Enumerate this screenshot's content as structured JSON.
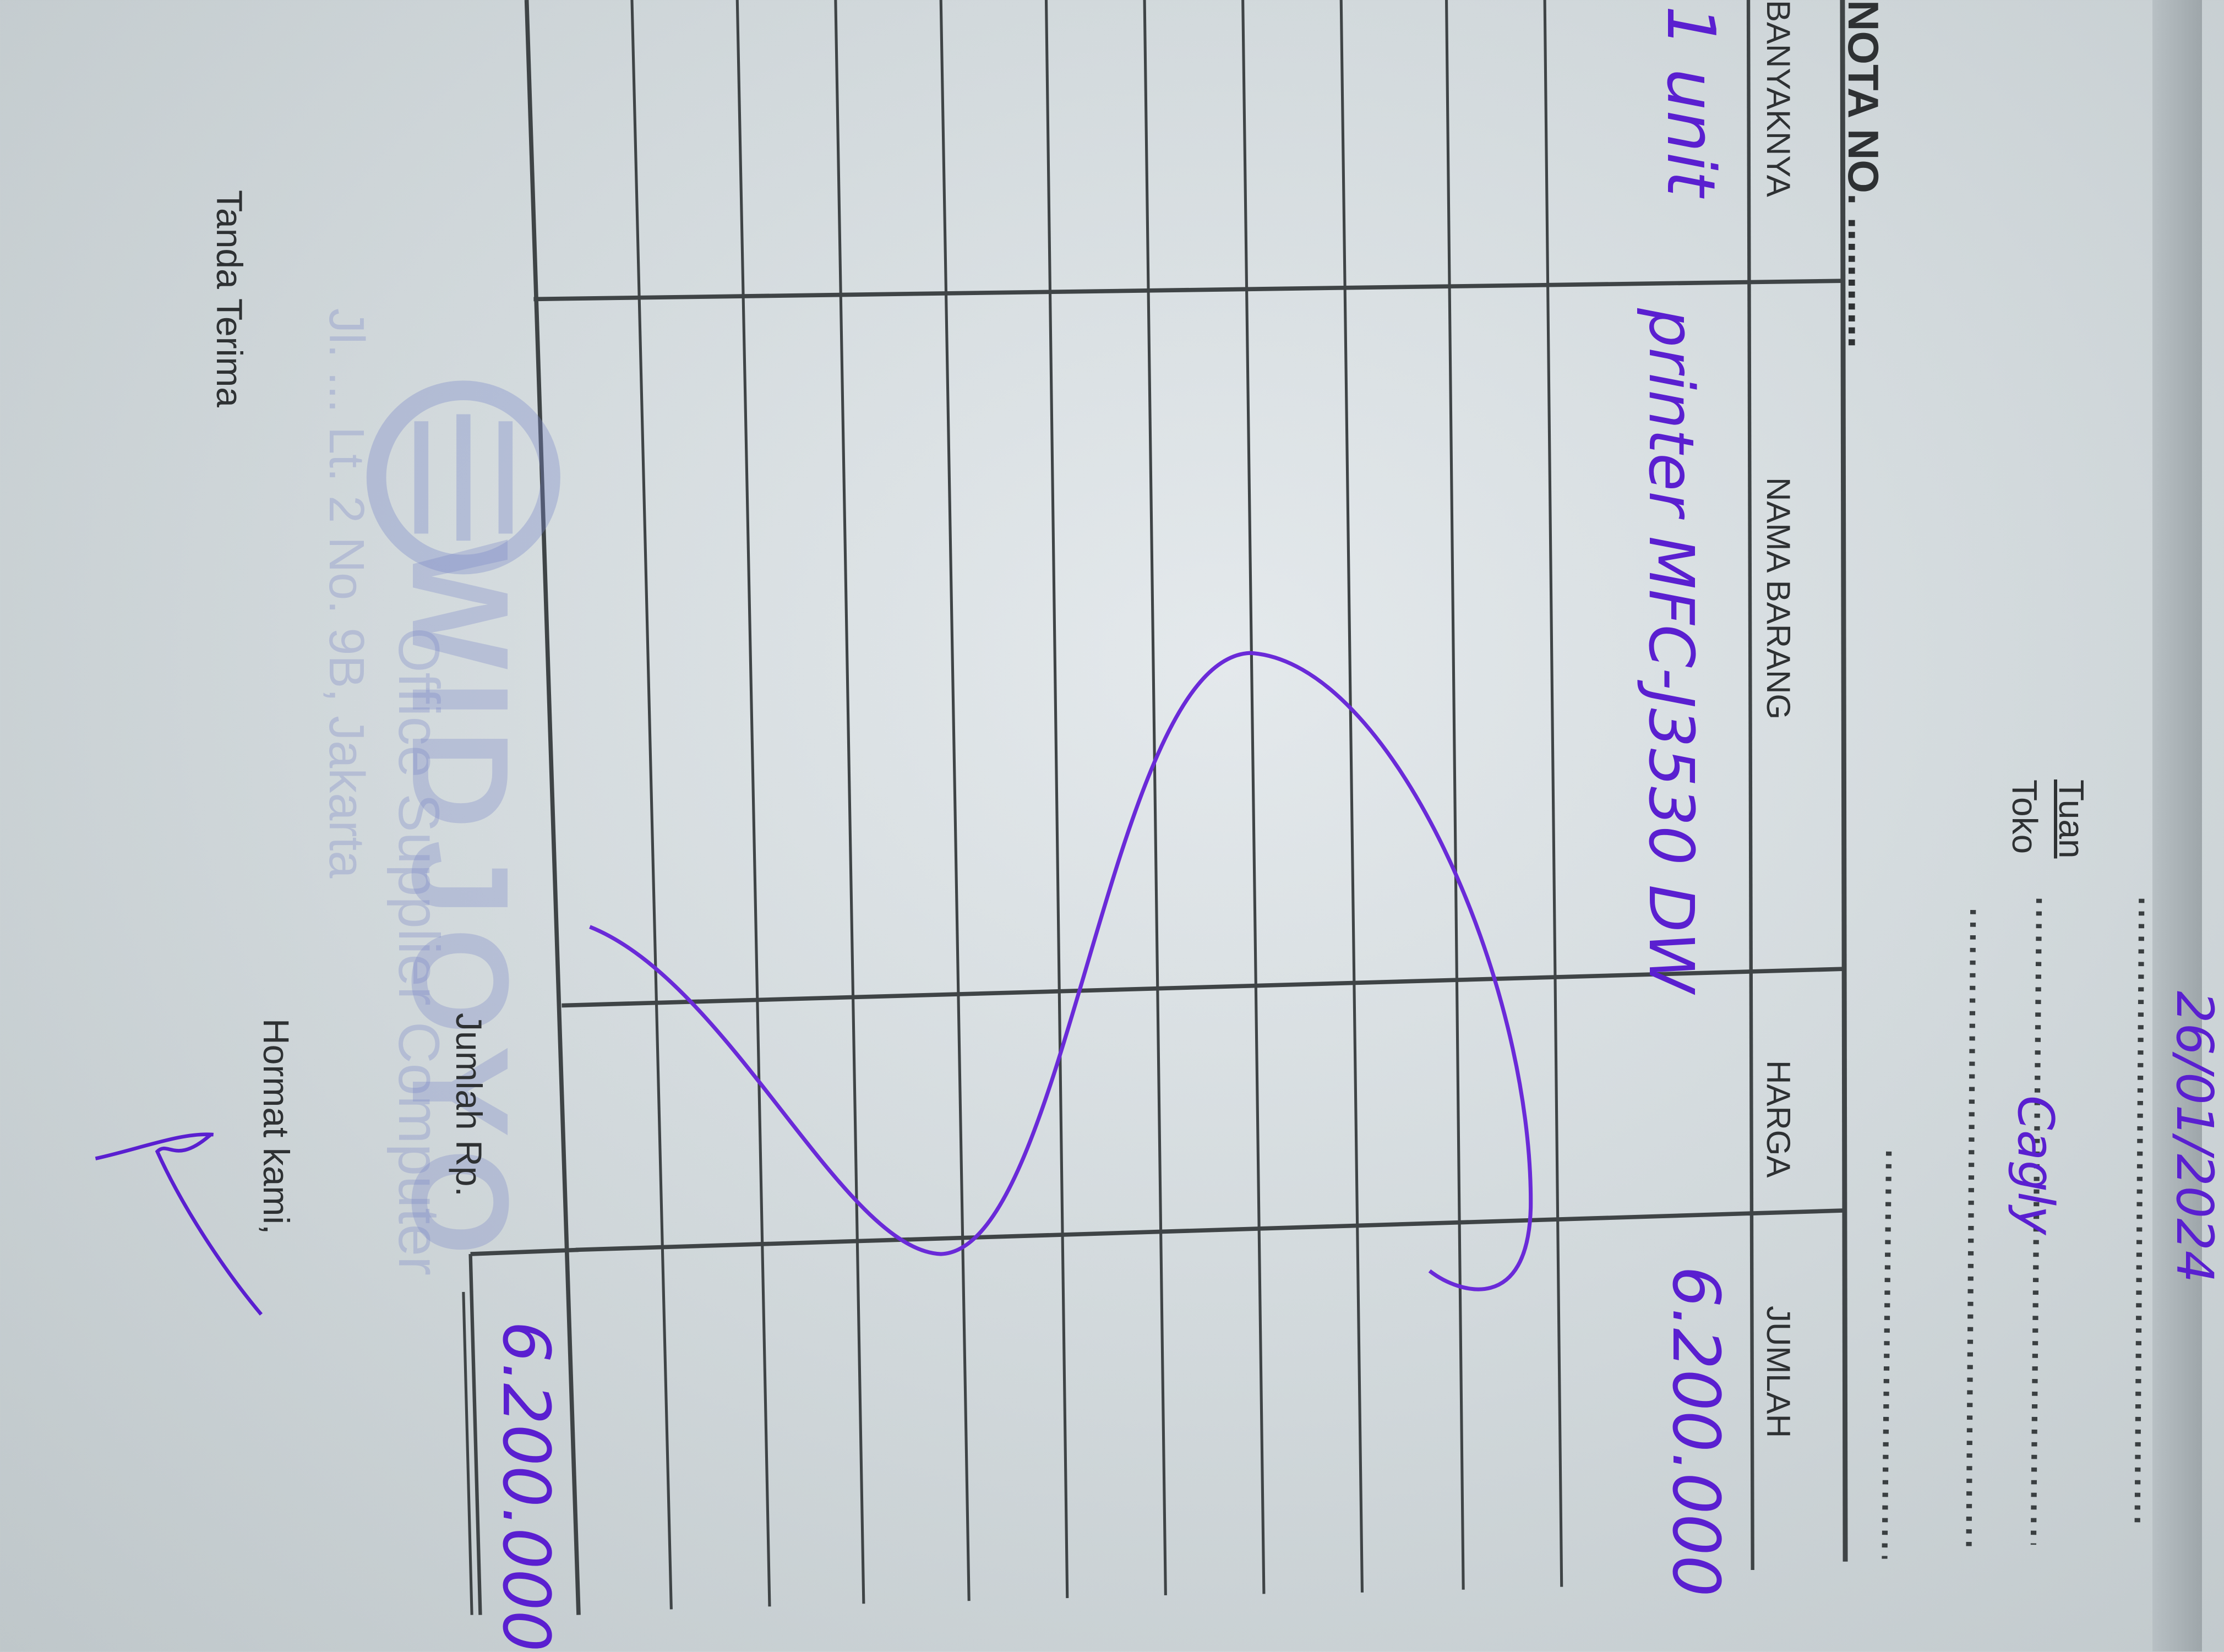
{
  "form": {
    "nota_label": "NOTA NO.",
    "nota_dots": "...........",
    "tuan": "Tuan",
    "toko": "Toko",
    "columns": [
      "BANYAKNYA",
      "NAMA BARANG",
      "HARGA",
      "JUMLAH"
    ],
    "total_label": "Jumlah Rp.",
    "receiver_label": "Tanda Terima",
    "sender_label": "Hormat kami,"
  },
  "handwritten": {
    "date": "26/01/2024",
    "customer": "Cagly",
    "items": [
      {
        "qty": "1 unit",
        "name": "printer MFC-J3530 DW",
        "price": "",
        "amount": "6.200.000"
      }
    ],
    "total": "6.200.000"
  },
  "stamp": {
    "name": "WIDJOYO",
    "tagline": "Office Supplier Computer",
    "address": "Jl. ... Lt. 2 No. 9B, Jakarta"
  },
  "colors": {
    "ink": "#5a1fd0",
    "print": "#2e3133",
    "stamp": "#8795c8"
  }
}
